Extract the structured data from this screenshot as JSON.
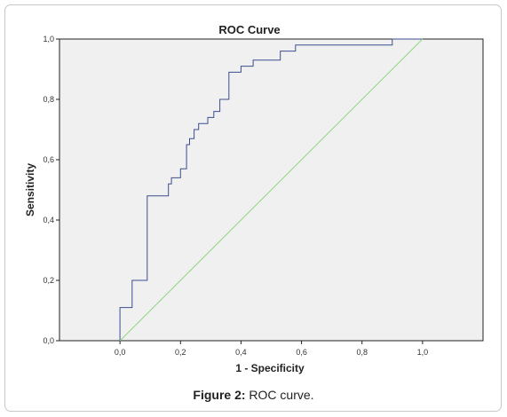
{
  "caption": {
    "label": "Figure 2:",
    "text": " ROC curve."
  },
  "chart_data": {
    "type": "line",
    "title": "ROC Curve",
    "xlabel": "1 - Specificity",
    "ylabel": "Sensitivity",
    "xlim": [
      -0.2,
      1.2
    ],
    "ylim": [
      0.0,
      1.0
    ],
    "x_ticks": [
      "0,0",
      "0,2",
      "0,4",
      "0,6",
      "0,8",
      "1,0"
    ],
    "y_ticks": [
      "0,0",
      "0,2",
      "0,4",
      "0,6",
      "0,8",
      "1,0"
    ],
    "grid": false,
    "legend": "none",
    "plot_background": "#f0f0f0",
    "series": [
      {
        "color": "#3d4e8f",
        "x": [
          0.0,
          0.0,
          0.04,
          0.04,
          0.09,
          0.09,
          0.16,
          0.16,
          0.17,
          0.17,
          0.2,
          0.2,
          0.22,
          0.22,
          0.23,
          0.23,
          0.245,
          0.245,
          0.26,
          0.26,
          0.29,
          0.29,
          0.31,
          0.31,
          0.33,
          0.33,
          0.36,
          0.36,
          0.4,
          0.4,
          0.44,
          0.44,
          0.53,
          0.53,
          0.58,
          0.58,
          0.9,
          0.9,
          1.0
        ],
        "y": [
          0.0,
          0.11,
          0.11,
          0.2,
          0.2,
          0.48,
          0.48,
          0.52,
          0.52,
          0.54,
          0.54,
          0.57,
          0.57,
          0.65,
          0.65,
          0.67,
          0.67,
          0.7,
          0.7,
          0.72,
          0.72,
          0.74,
          0.74,
          0.76,
          0.76,
          0.8,
          0.8,
          0.89,
          0.89,
          0.91,
          0.91,
          0.93,
          0.93,
          0.96,
          0.96,
          0.98,
          0.98,
          1.0,
          1.0
        ]
      },
      {
        "color": "#8fd67f",
        "x": [
          0.0,
          1.0
        ],
        "y": [
          0.0,
          1.0
        ]
      }
    ]
  }
}
